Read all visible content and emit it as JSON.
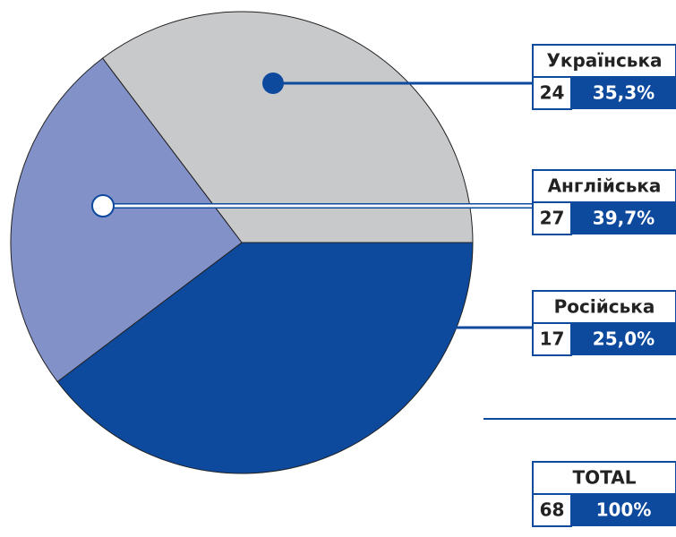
{
  "chart_data": {
    "type": "pie",
    "categories": [
      "Українська",
      "Англійська",
      "Російська"
    ],
    "values": [
      24,
      27,
      17
    ],
    "percentages": [
      35.3,
      39.7,
      25.0
    ],
    "percentage_labels": [
      "35,3%",
      "39,7%",
      "25,0%"
    ],
    "colors": [
      "#c8c9cb",
      "#0d4a9e",
      "#8391c9"
    ],
    "total": {
      "label": "TOTAL",
      "value": 68,
      "percentage_label": "100%"
    }
  }
}
